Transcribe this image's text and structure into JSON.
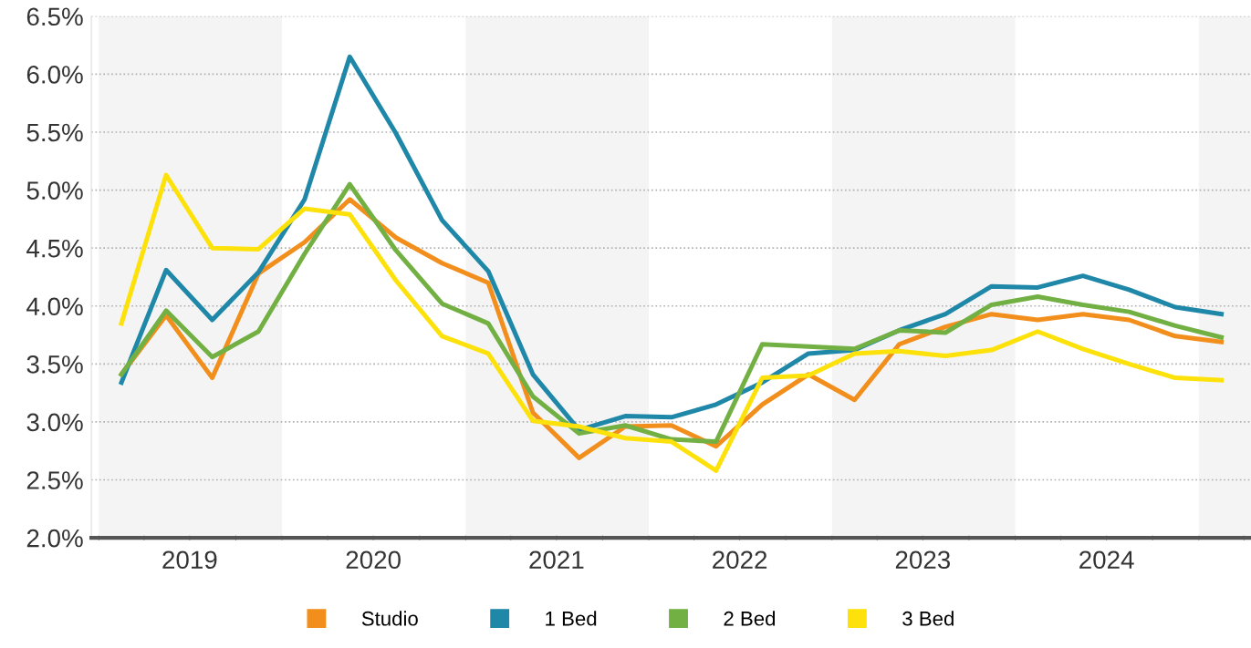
{
  "chart_data": {
    "type": "line",
    "x": [
      "2019-02-15",
      "2019-05-15",
      "2019-08-15",
      "2019-11-15",
      "2020-02-15",
      "2020-05-15",
      "2020-08-15",
      "2020-11-15",
      "2021-02-15",
      "2021-05-15",
      "2021-08-15",
      "2021-11-15",
      "2022-02-15",
      "2022-05-15",
      "2022-08-15",
      "2022-11-15",
      "2023-02-15",
      "2023-05-15",
      "2023-08-15",
      "2023-11-15",
      "2024-02-15",
      "2024-05-15",
      "2024-08-15",
      "2024-11-15",
      "2025-02-15"
    ],
    "series": [
      {
        "name": "Studio",
        "color": "#f28e1c",
        "values": [
          3.41,
          3.92,
          3.38,
          4.28,
          4.55,
          4.92,
          4.59,
          4.37,
          4.2,
          3.08,
          2.69,
          2.96,
          2.97,
          2.79,
          3.15,
          3.41,
          3.19,
          3.67,
          3.82,
          3.93,
          3.88,
          3.93,
          3.88,
          3.74,
          3.69
        ]
      },
      {
        "name": "1 Bed",
        "color": "#1f87a8",
        "values": [
          3.34,
          4.31,
          3.88,
          4.29,
          4.92,
          6.15,
          5.49,
          4.74,
          4.3,
          3.41,
          2.93,
          3.05,
          3.04,
          3.15,
          3.34,
          3.59,
          3.62,
          3.79,
          3.93,
          4.17,
          4.16,
          4.26,
          4.14,
          3.99,
          3.93
        ]
      },
      {
        "name": "2 Bed",
        "color": "#72b043",
        "values": [
          3.41,
          3.96,
          3.56,
          3.78,
          4.45,
          5.05,
          4.48,
          4.02,
          3.85,
          3.22,
          2.9,
          2.97,
          2.85,
          2.83,
          3.67,
          3.65,
          3.63,
          3.79,
          3.77,
          4.01,
          4.08,
          4.01,
          3.95,
          3.83,
          3.73
        ]
      },
      {
        "name": "3 Bed",
        "color": "#fde10a",
        "values": [
          3.85,
          5.13,
          4.5,
          4.49,
          4.84,
          4.79,
          4.22,
          3.74,
          3.59,
          3.01,
          2.96,
          2.86,
          2.83,
          2.58,
          3.38,
          3.4,
          3.59,
          3.61,
          3.57,
          3.62,
          3.78,
          3.63,
          3.5,
          3.38,
          3.36
        ]
      }
    ],
    "xlim": [
      "2018-12-17",
      "2025-04-15"
    ],
    "xticks": [
      {
        "value": "2019-01-01",
        "label": null
      },
      {
        "value": "2019-04-01",
        "label": null
      },
      {
        "value": "2019-07-01",
        "label": "2019"
      },
      {
        "value": "2019-10-01",
        "label": null
      },
      {
        "value": "2020-01-01",
        "label": null
      },
      {
        "value": "2020-04-01",
        "label": null
      },
      {
        "value": "2020-07-01",
        "label": "2020"
      },
      {
        "value": "2020-10-01",
        "label": null
      },
      {
        "value": "2021-01-01",
        "label": null
      },
      {
        "value": "2021-04-01",
        "label": null
      },
      {
        "value": "2021-07-01",
        "label": "2021"
      },
      {
        "value": "2021-10-01",
        "label": null
      },
      {
        "value": "2022-01-01",
        "label": null
      },
      {
        "value": "2022-04-01",
        "label": null
      },
      {
        "value": "2022-07-01",
        "label": "2022"
      },
      {
        "value": "2022-10-01",
        "label": null
      },
      {
        "value": "2023-01-01",
        "label": null
      },
      {
        "value": "2023-04-01",
        "label": null
      },
      {
        "value": "2023-07-01",
        "label": "2023"
      },
      {
        "value": "2023-10-01",
        "label": null
      },
      {
        "value": "2024-01-01",
        "label": null
      },
      {
        "value": "2024-04-01",
        "label": null
      },
      {
        "value": "2024-07-01",
        "label": "2024"
      },
      {
        "value": "2024-10-01",
        "label": null
      },
      {
        "value": "2025-01-01",
        "label": null
      },
      {
        "value": "2025-04-01",
        "label": null
      }
    ],
    "ylim": [
      2.0,
      6.5
    ],
    "yticks": [
      {
        "value": 2.0,
        "label": "2.0%"
      },
      {
        "value": 2.5,
        "label": "2.5%"
      },
      {
        "value": 3.0,
        "label": "3.0%"
      },
      {
        "value": 3.5,
        "label": "3.5%"
      },
      {
        "value": 4.0,
        "label": "4.0%"
      },
      {
        "value": 4.5,
        "label": "4.5%"
      },
      {
        "value": 5.0,
        "label": "5.0%"
      },
      {
        "value": 5.5,
        "label": "5.5%"
      },
      {
        "value": 6.0,
        "label": "6.0%"
      },
      {
        "value": 6.5,
        "label": "6.5%"
      }
    ],
    "bands": [
      {
        "axis": "x",
        "from": "2019-01-01",
        "to": "2020-01-01",
        "color": "#f4f4f4"
      },
      {
        "axis": "x",
        "from": "2021-01-01",
        "to": "2022-01-01",
        "color": "#f4f4f4"
      },
      {
        "axis": "x",
        "from": "2023-01-01",
        "to": "2024-01-01",
        "color": "#f4f4f4"
      },
      {
        "axis": "x",
        "from": "2025-01-01",
        "to": "2025-04-15",
        "color": "#f4f4f4"
      }
    ],
    "grid": "y",
    "legend": "bottom",
    "marker": "none",
    "line_style": "solid"
  }
}
